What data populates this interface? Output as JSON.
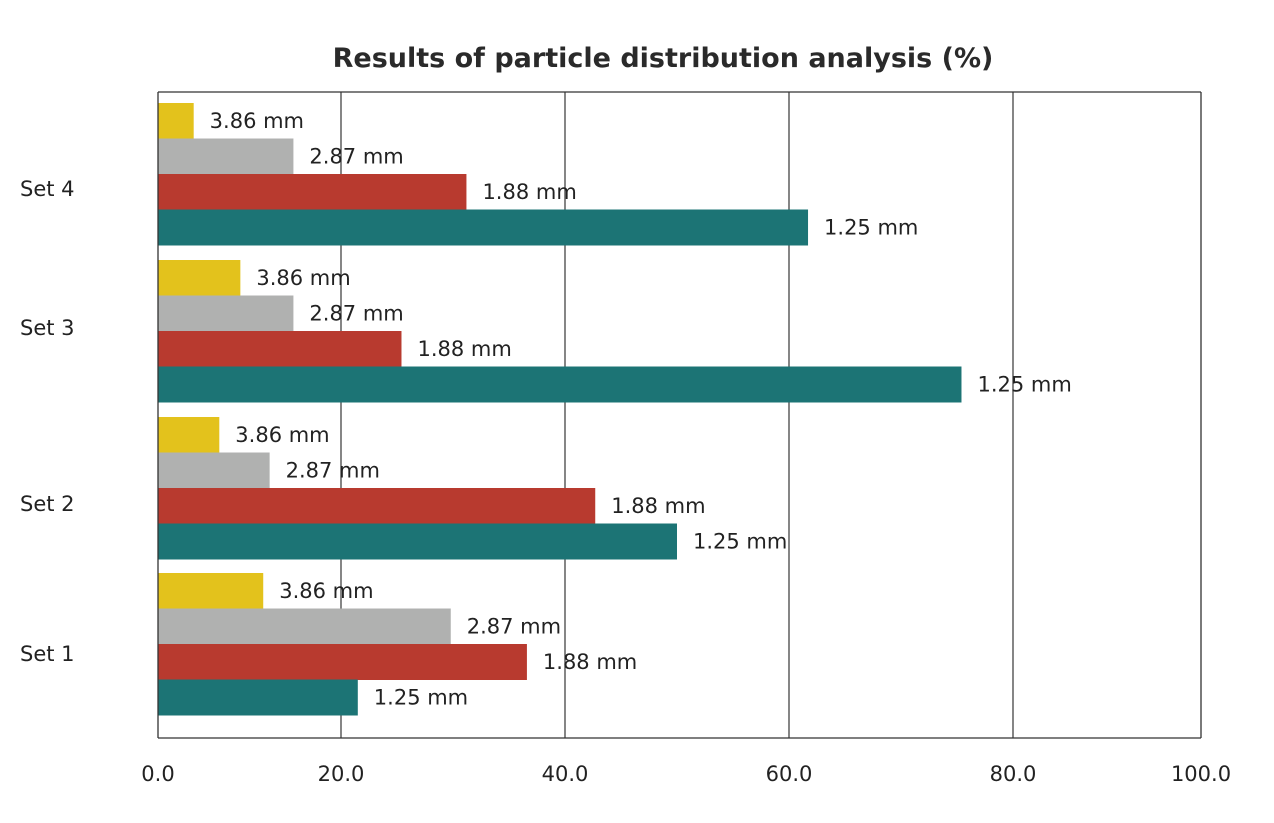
{
  "chart_data": {
    "type": "bar",
    "orientation": "horizontal",
    "title": "Results of particle distribution analysis (%)",
    "xlabel": "",
    "ylabel": "",
    "xlim": [
      0,
      100
    ],
    "xticks": [
      "0.0",
      "20.0",
      "40.0",
      "60.0",
      "80.0",
      "100.0"
    ],
    "grid": "vertical",
    "categories": [
      "Set 4",
      "Set 3",
      "Set 2",
      "Set 1"
    ],
    "series": [
      {
        "name": "3.86 mm",
        "color": "#e3c21c",
        "values": [
          3.9,
          9.0,
          6.7,
          11.5
        ]
      },
      {
        "name": "2.87 mm",
        "color": "#b0b1b0",
        "values": [
          14.8,
          14.8,
          12.2,
          29.8
        ]
      },
      {
        "name": "1.88 mm",
        "color": "#b83a2f",
        "values": [
          31.2,
          25.4,
          42.7,
          36.6
        ]
      },
      {
        "name": "1.25 mm",
        "color": "#1c7475",
        "values": [
          61.7,
          75.4,
          50.0,
          21.5
        ]
      }
    ]
  }
}
